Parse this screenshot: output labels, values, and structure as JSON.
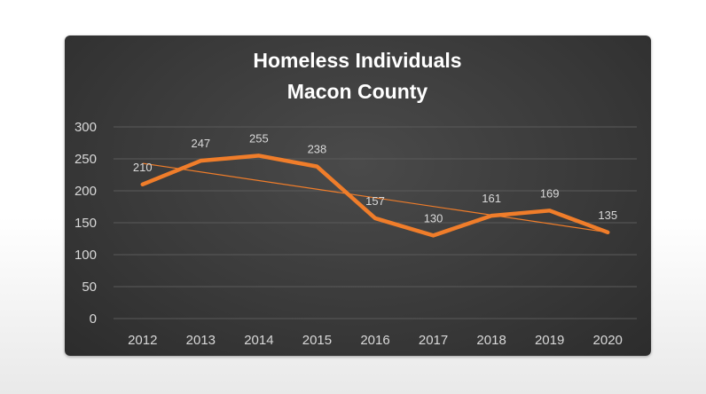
{
  "chart_data": {
    "type": "line",
    "title_lines": [
      "Homeless Individuals",
      "Macon County"
    ],
    "categories": [
      "2012",
      "2013",
      "2014",
      "2015",
      "2016",
      "2017",
      "2018",
      "2019",
      "2020"
    ],
    "series": [
      {
        "values": [
          210,
          247,
          255,
          238,
          157,
          130,
          161,
          169,
          135
        ],
        "color": "#f07d2a"
      }
    ],
    "data_labels": [
      "210",
      "247",
      "255",
      "238",
      "157",
      "130",
      "161",
      "169",
      "135"
    ],
    "trendline": {
      "type": "linear",
      "start": 243,
      "end": 135,
      "color": "#f07d2a"
    },
    "yticks": [
      "0",
      "50",
      "100",
      "150",
      "200",
      "250",
      "300"
    ],
    "ylim": [
      0,
      300
    ],
    "grid": true,
    "legend": "none",
    "xlabel": "",
    "ylabel": ""
  }
}
